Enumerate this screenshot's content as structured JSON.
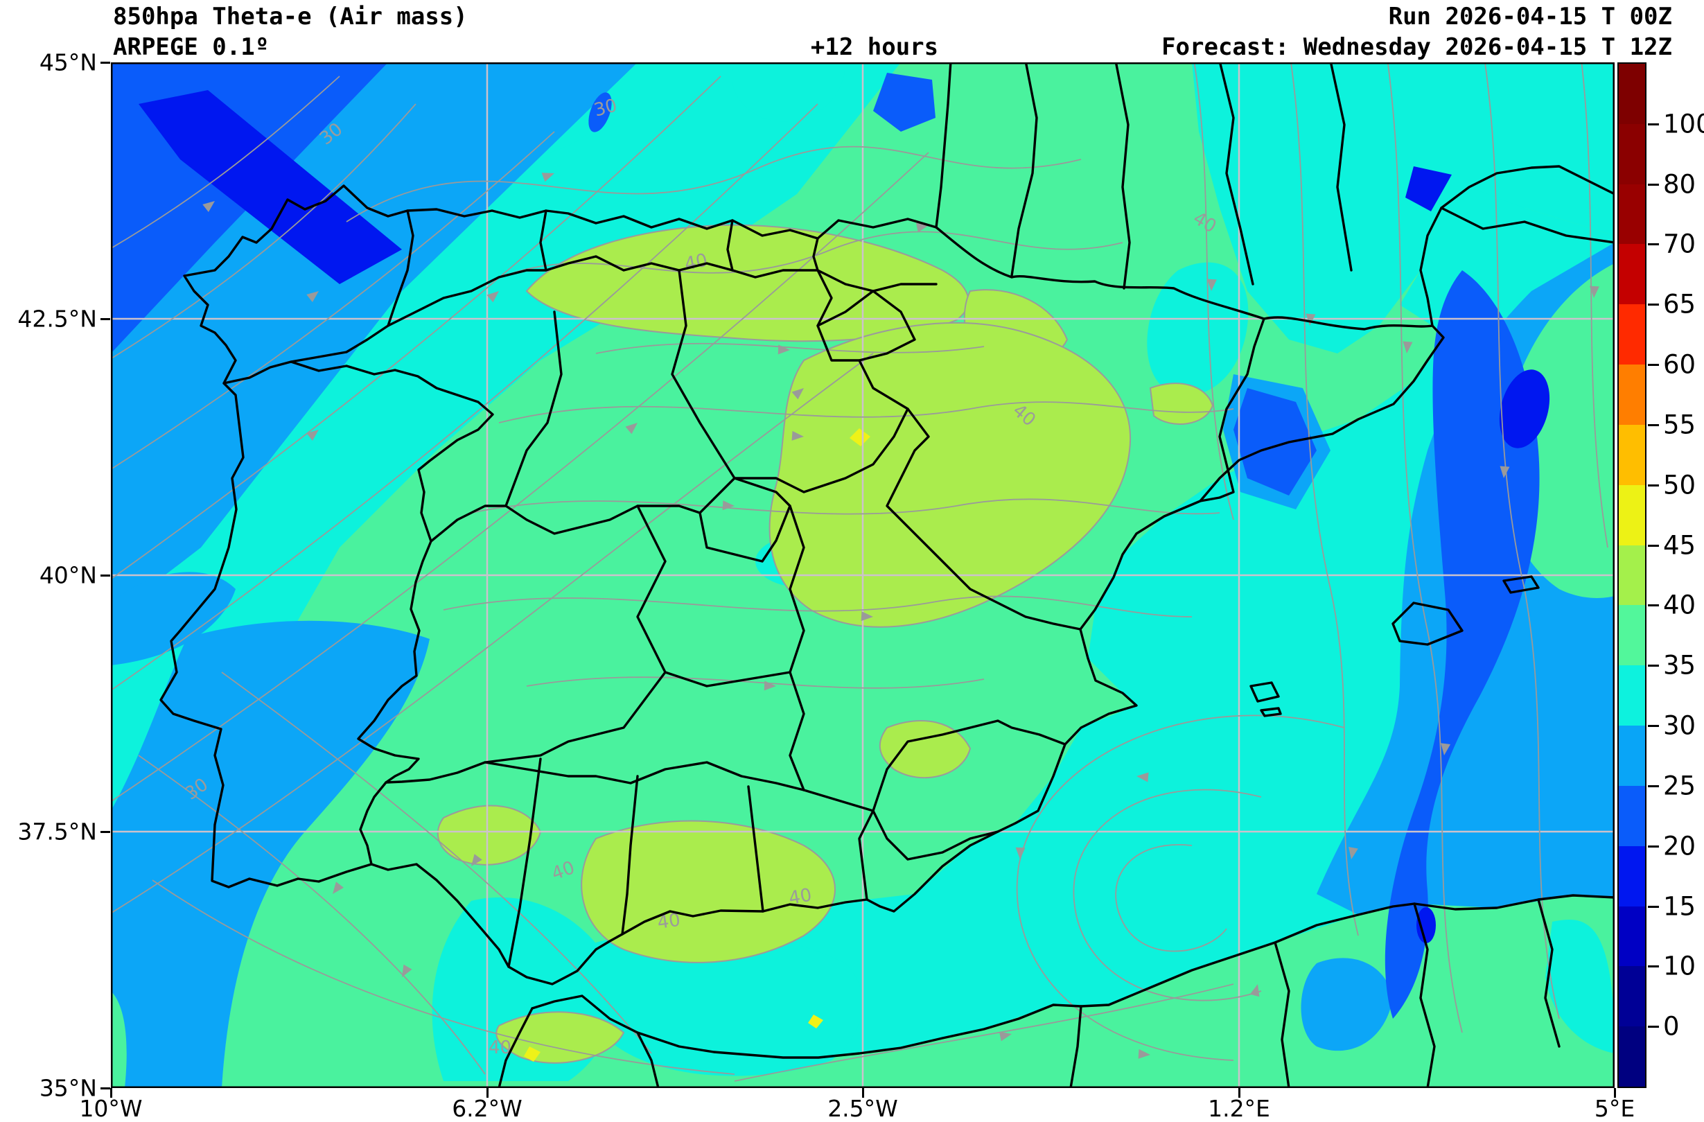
{
  "header": {
    "title": "850hpa Theta-e (Air mass)",
    "model": "ARPEGE 0.1º",
    "lead_time": "+12 hours",
    "run": "Run 2026-04-15 T 00Z",
    "forecast": "Forecast: Wednesday 2026-04-15 T 12Z"
  },
  "axes": {
    "lat_ticks": [
      "45°N",
      "42.5°N",
      "40°N",
      "37.5°N",
      "35°N"
    ],
    "lon_ticks": [
      "10°W",
      "6.2°W",
      "2.5°W",
      "1.2°E",
      "5°E"
    ]
  },
  "colorbar": {
    "tick_labels": [
      "100",
      "80",
      "70",
      "65",
      "60",
      "55",
      "50",
      "45",
      "40",
      "35",
      "30",
      "25",
      "20",
      "15",
      "10",
      "0"
    ],
    "segment_colors_top_to_bottom": [
      "#7e0000",
      "#8b0000",
      "#990000",
      "#c40000",
      "#ff2a00",
      "#ff7e00",
      "#ffbe00",
      "#edf215",
      "#a4f04b",
      "#52f79b",
      "#0df2de",
      "#09a5f7",
      "#0a5cfa",
      "#0017f0",
      "#0000c4",
      "#000096",
      "#000080"
    ]
  },
  "chart_data": {
    "type": "heatmap",
    "title": "850hpa Theta-e (Air mass)",
    "model": "ARPEGE 0.1º",
    "lead_time_hours": 12,
    "run": "2026-04-15 00Z",
    "valid": "Wednesday 2026-04-15 12Z",
    "field": "850 hPa equivalent potential temperature (theta-e, °C) filled contours with wind streamlines over the Iberian Peninsula",
    "lon_range_deg": [
      -10,
      5
    ],
    "lat_range_deg": [
      35,
      45
    ],
    "levels": [
      0,
      10,
      15,
      20,
      25,
      30,
      35,
      40,
      45,
      50,
      55,
      60,
      65,
      70,
      80,
      100
    ],
    "level_colors_low_to_high": [
      "#000080",
      "#000096",
      "#0000c4",
      "#0017f0",
      "#0a5cfa",
      "#09a5f7",
      "#0df2de",
      "#52f79b",
      "#a4f04b",
      "#edf215",
      "#ffbe00",
      "#ff7e00",
      "#ff2a00",
      "#c40000",
      "#990000",
      "#8b0000",
      "#7e0000"
    ],
    "contour_labels": [
      "30",
      "40"
    ],
    "sampled_values": [
      {
        "area": "NW Atlantic corner (Bay of Biscay offshore)",
        "theta_e_band": "15-25"
      },
      {
        "area": "Atlantic band off Galicia / W Portugal",
        "theta_e_band": "25-35"
      },
      {
        "area": "Most of interior Iberia",
        "theta_e_band": "35-40"
      },
      {
        "area": "Northern Castile / Ebro / La Mancha / Sierra Morena patches",
        "theta_e_band": "40-45"
      },
      {
        "area": "Small spots central & southern Spain",
        "theta_e_band": "45-50"
      },
      {
        "area": "Southern Portugal diagonal band",
        "theta_e_band": "25-30"
      },
      {
        "area": "Western Mediterranean / Gulf of Lion",
        "theta_e_band": "25-35"
      },
      {
        "area": "Mediterranean dark band east of Balearics",
        "theta_e_band": "20-25"
      },
      {
        "area": "SE of Balearics wedge",
        "theta_e_band": "35-40"
      },
      {
        "area": "North Africa strip",
        "theta_e_band": "30-40"
      }
    ],
    "flow": "Streamlines SW→NE over NW Atlantic, W→E over central Iberia, N→S over the western Mediterranean, cyclonic circulation near the Alboran Sea",
    "legend_position": "right vertical colorbar",
    "grid": true
  },
  "map_style": {
    "band_green": "#4af29e",
    "band_cyan": "#0df2dc",
    "band_skyblue": "#0ca6f7",
    "band_blue": "#0a5cfa",
    "band_deepblue": "#0017f0",
    "band_yellowgreen": "#aaec4d",
    "band_yellow": "#eef218",
    "gridline_color": "#ccc2cc",
    "streamline_color": "#9a9a9a",
    "contour_label_color": "#9b9b9b",
    "boundary_color": "#000000"
  }
}
